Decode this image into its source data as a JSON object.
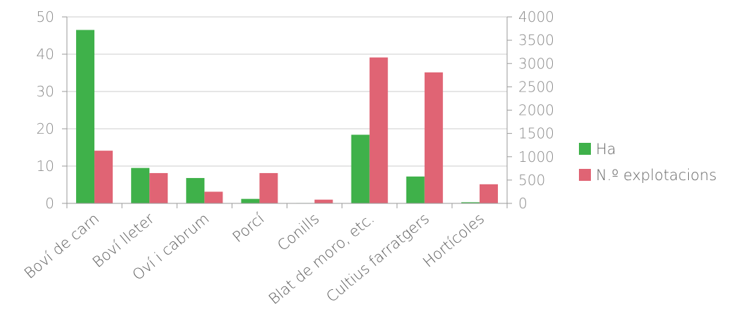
{
  "chart_data": {
    "type": "bar",
    "categories": [
      "Boví de carn",
      "Boví lleter",
      "Oví i cabrum",
      "Porcí",
      "Conills",
      "Blat de moro, etc.",
      "Cultius farratgers",
      "Hortícoles"
    ],
    "series": [
      {
        "name": "Ha",
        "axis": "left",
        "color": "#3fb14a",
        "values": [
          46.5,
          9.5,
          6.8,
          1.2,
          0.1,
          18.4,
          7.2,
          0.3
        ]
      },
      {
        "name": "N.º explotacions",
        "axis": "right",
        "color": "#e06474",
        "values": [
          1130,
          650,
          250,
          650,
          80,
          3130,
          2810,
          410
        ]
      }
    ],
    "y_left": {
      "min": 0,
      "max": 50,
      "ticks": [
        0,
        10,
        20,
        30,
        40,
        50
      ]
    },
    "y_right": {
      "min": 0,
      "max": 4000,
      "ticks": [
        0,
        500,
        1000,
        1500,
        2000,
        2500,
        3000,
        3500,
        4000
      ]
    },
    "grid": true,
    "legend_position": "right"
  }
}
